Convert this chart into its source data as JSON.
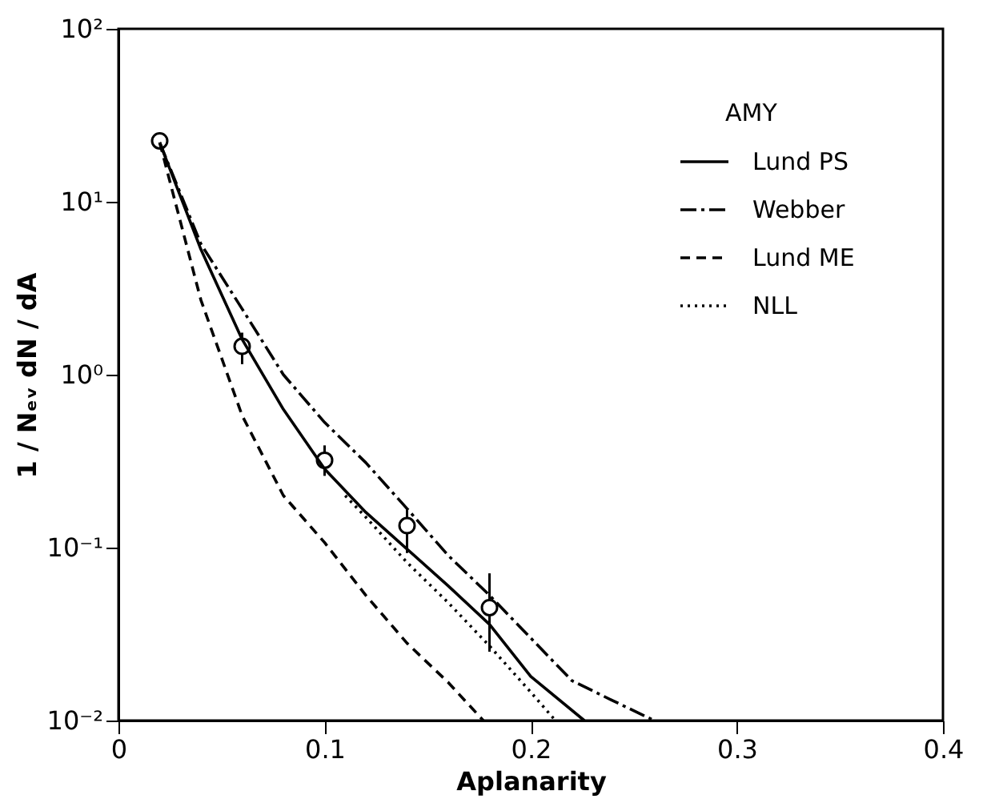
{
  "chart_data": {
    "type": "line",
    "xlabel": "Aplanarity",
    "ylabel": "1 / Nₑᵥ dN / dA",
    "log": "y",
    "xlim": [
      0,
      0.4
    ],
    "ylim": [
      0.01,
      100
    ],
    "xticks": [
      0,
      0.1,
      0.2,
      0.3,
      0.4
    ],
    "yticks": [
      {
        "value": 0.01,
        "label": "10⁻²"
      },
      {
        "value": 0.1,
        "label": "10⁻¹"
      },
      {
        "value": 1,
        "label": "10⁰"
      },
      {
        "value": 10,
        "label": "10¹"
      },
      {
        "value": 100,
        "label": "10²"
      }
    ],
    "grid": false,
    "legend": "top right",
    "series": [
      {
        "name": "AMY",
        "type": "scatter",
        "color": "#000000",
        "marker": "circle",
        "x": [
          0.02,
          0.06,
          0.1,
          0.14,
          0.18
        ],
        "values": [
          22.5,
          1.46,
          0.32,
          0.134,
          0.045
        ],
        "errors": [
          null,
          [
            1.15,
            1.75
          ],
          [
            0.26,
            0.39
          ],
          [
            0.093,
            0.166
          ],
          [
            0.025,
            0.071
          ]
        ]
      },
      {
        "name": "Lund PS",
        "color": "#000000",
        "line_style": "solid",
        "x": [
          0.02,
          0.04,
          0.06,
          0.08,
          0.1,
          0.12,
          0.14,
          0.16,
          0.18,
          0.2,
          0.226
        ],
        "values": [
          22,
          5.3,
          1.6,
          0.63,
          0.285,
          0.16,
          0.098,
          0.06,
          0.036,
          0.018,
          0.01
        ]
      },
      {
        "name": "Webber",
        "color": "#000000",
        "line_style": "dashdot",
        "x": [
          0.02,
          0.04,
          0.06,
          0.08,
          0.1,
          0.12,
          0.14,
          0.16,
          0.18,
          0.2,
          0.22,
          0.24,
          0.26
        ],
        "values": [
          22,
          5.7,
          2.4,
          1.0,
          0.53,
          0.31,
          0.168,
          0.09,
          0.053,
          0.03,
          0.017,
          0.013,
          0.01
        ]
      },
      {
        "name": "Lund ME",
        "color": "#000000",
        "line_style": "dashed",
        "x": [
          0.02,
          0.04,
          0.06,
          0.08,
          0.1,
          0.12,
          0.14,
          0.16,
          0.177
        ],
        "values": [
          22,
          2.7,
          0.58,
          0.2,
          0.107,
          0.053,
          0.028,
          0.0166,
          0.01
        ]
      },
      {
        "name": "NLL",
        "color": "#000000",
        "line_style": "dotted",
        "x": [
          0.11,
          0.12,
          0.14,
          0.16,
          0.18,
          0.2,
          0.212
        ],
        "values": [
          0.2,
          0.15,
          0.082,
          0.048,
          0.027,
          0.0146,
          0.01
        ]
      }
    ]
  }
}
